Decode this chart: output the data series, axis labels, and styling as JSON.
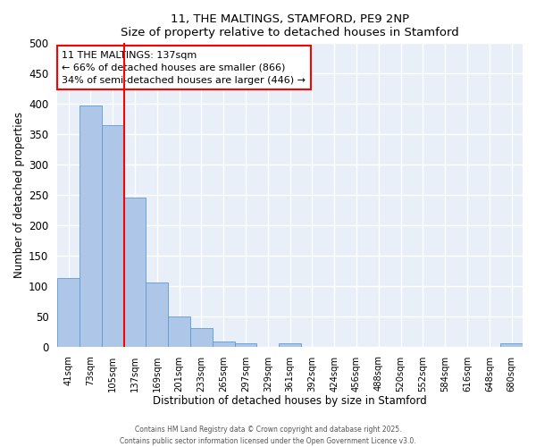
{
  "title": "11, THE MALTINGS, STAMFORD, PE9 2NP",
  "subtitle": "Size of property relative to detached houses in Stamford",
  "xlabel": "Distribution of detached houses by size in Stamford",
  "ylabel": "Number of detached properties",
  "bar_labels": [
    "41sqm",
    "73sqm",
    "105sqm",
    "137sqm",
    "169sqm",
    "201sqm",
    "233sqm",
    "265sqm",
    "297sqm",
    "329sqm",
    "361sqm",
    "392sqm",
    "424sqm",
    "456sqm",
    "488sqm",
    "520sqm",
    "552sqm",
    "584sqm",
    "616sqm",
    "648sqm",
    "680sqm"
  ],
  "bar_values": [
    113,
    397,
    365,
    245,
    105,
    50,
    30,
    8,
    5,
    0,
    5,
    0,
    0,
    0,
    0,
    0,
    0,
    0,
    0,
    0,
    5
  ],
  "bar_color": "#aec6e8",
  "bar_edgecolor": "#5b9bd5",
  "vline_color": "red",
  "annotation_text": "11 THE MALTINGS: 137sqm\n← 66% of detached houses are smaller (866)\n34% of semi-detached houses are larger (446) →",
  "annotation_box_edgecolor": "red",
  "annotation_box_facecolor": "white",
  "ylim": [
    0,
    500
  ],
  "yticks": [
    0,
    50,
    100,
    150,
    200,
    250,
    300,
    350,
    400,
    450,
    500
  ],
  "bg_color": "#e8eff8",
  "grid_color": "white",
  "footnote1": "Contains HM Land Registry data © Crown copyright and database right 2025.",
  "footnote2": "Contains public sector information licensed under the Open Government Licence v3.0."
}
